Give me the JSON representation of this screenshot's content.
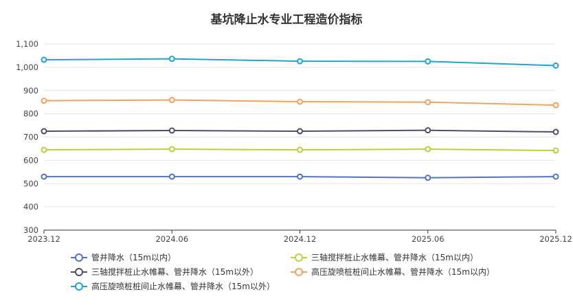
{
  "chart_data": {
    "type": "line",
    "title": "基坑降止水专业工程造价指标",
    "xlabel": "",
    "ylabel": "",
    "x": [
      "2023.12",
      "2024.06",
      "2024.12",
      "2025.06",
      "2025.12"
    ],
    "ylim": [
      300,
      1100
    ],
    "yticks": [
      300,
      400,
      500,
      600,
      700,
      800,
      900,
      1000,
      1100
    ],
    "ytick_labels": [
      "300",
      "400",
      "500",
      "600",
      "700",
      "800",
      "900",
      "1,000",
      "1,100"
    ],
    "grid": true,
    "legend_position": "bottom",
    "series": [
      {
        "name": "管井降水（15m以内）",
        "color": "#5470c6",
        "values": [
          530,
          530,
          530,
          525,
          530
        ]
      },
      {
        "name": "三轴搅拌桩止水帷幕、管井降水（15m以内）",
        "color": "#b7d332",
        "values": [
          645,
          648,
          645,
          648,
          642
        ]
      },
      {
        "name": "三轴搅拌桩止水帷幕、管井降水（15m以外）",
        "color": "#4a4e6e",
        "values": [
          725,
          728,
          725,
          729,
          722
        ]
      },
      {
        "name": "高压旋喷桩桩间止水帷幕、管井降水（15m以内）",
        "color": "#f5a05a",
        "values": [
          856,
          859,
          852,
          850,
          837
        ]
      },
      {
        "name": "高压旋喷桩桩间止水帷幕、管井降水（15m以外）",
        "color": "#1aa6d3",
        "values": [
          1032,
          1036,
          1026,
          1025,
          1007
        ]
      }
    ]
  }
}
